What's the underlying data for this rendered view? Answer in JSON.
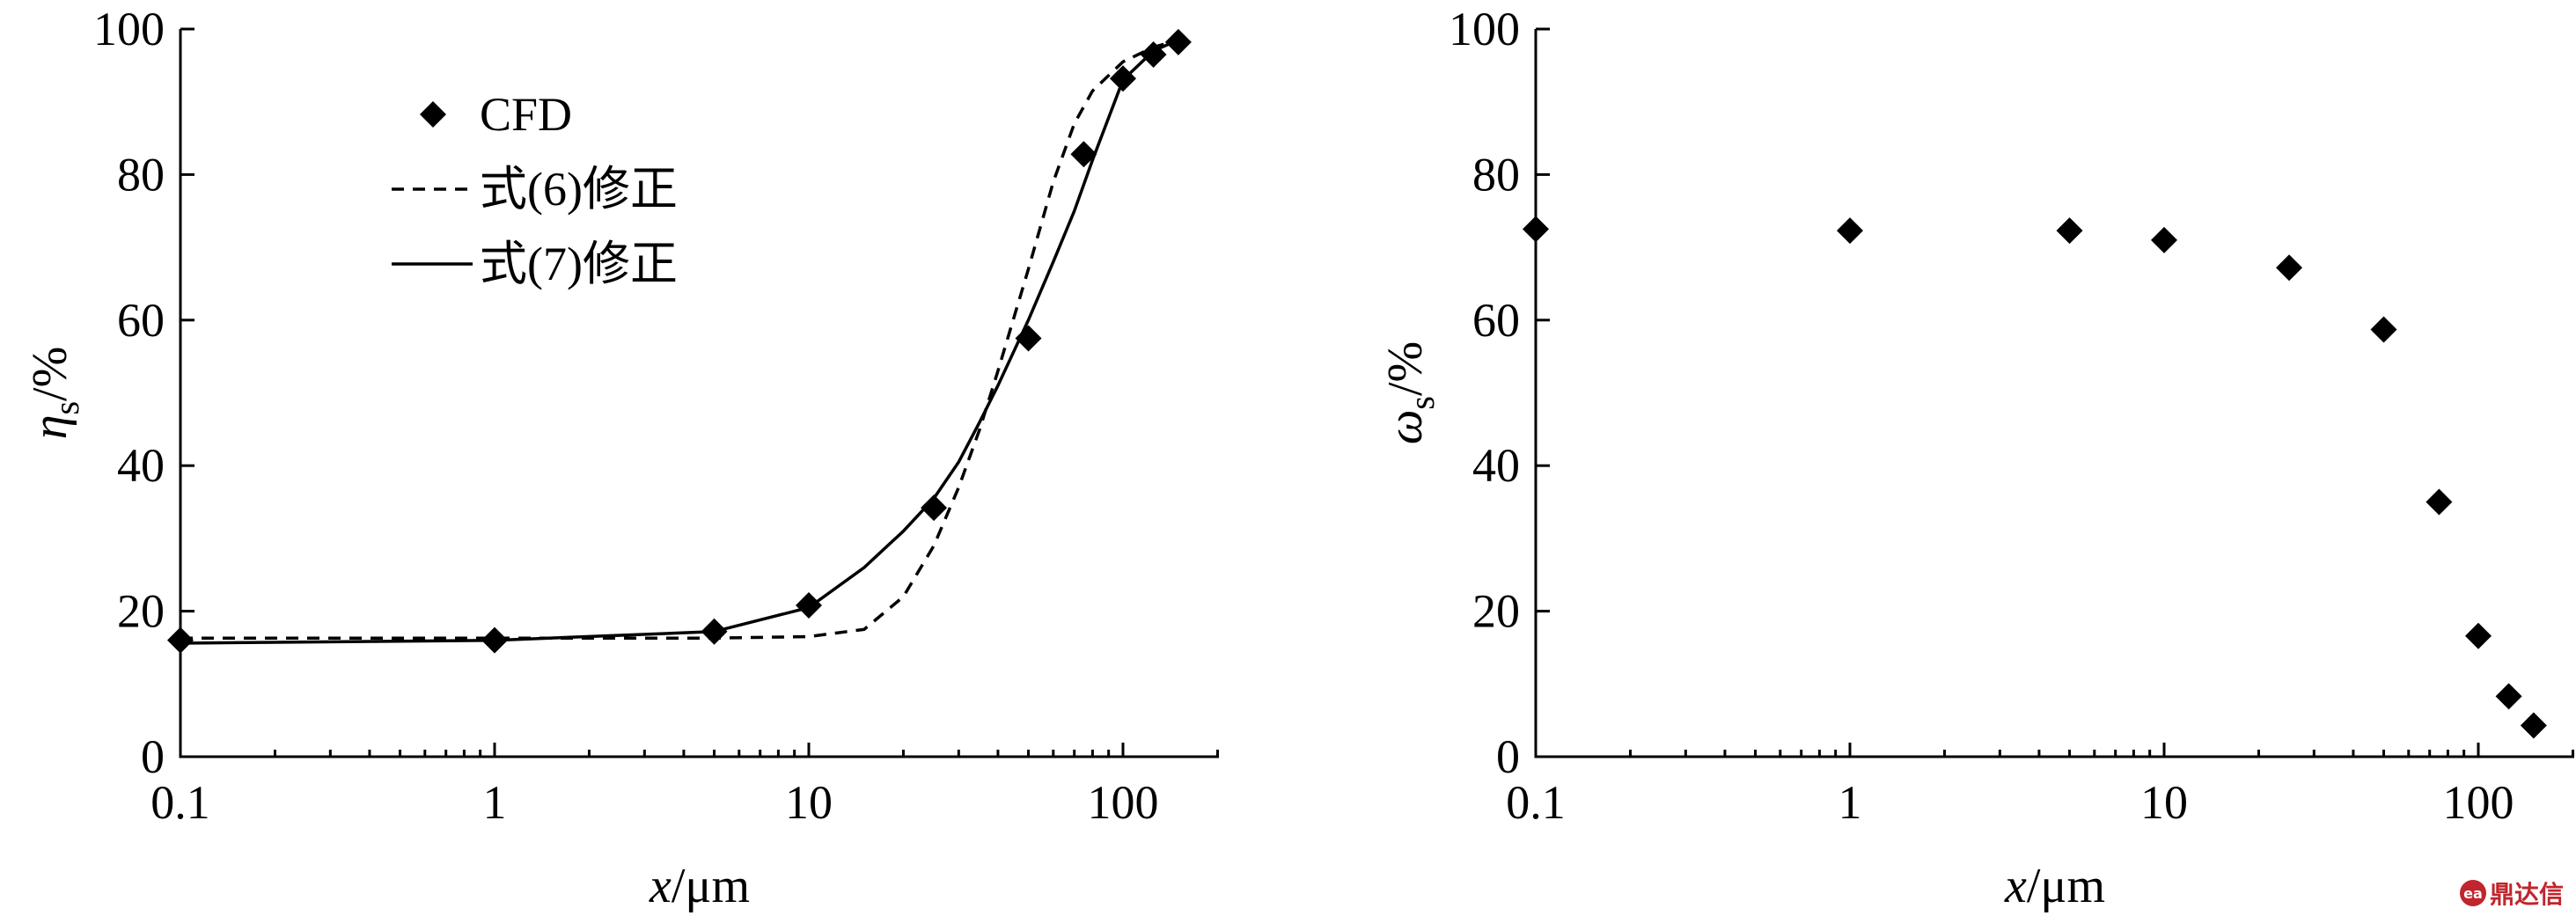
{
  "chart_data": [
    {
      "type": "line",
      "xscale": "log",
      "xlim": [
        0.1,
        200
      ],
      "ylim": [
        0,
        100
      ],
      "xticks": [
        "0.1",
        "1",
        "10",
        "100"
      ],
      "yticks": [
        "0",
        "20",
        "40",
        "60",
        "80",
        "100"
      ],
      "xlabel": {
        "italic": "x",
        "rest": "/μm"
      },
      "ylabel": {
        "symbol": "η",
        "sub": "s",
        "rest": "/%"
      },
      "legend_position": "top-left",
      "series": [
        {
          "name": "CFD",
          "style": "diamond-markers",
          "x": [
            0.1,
            1,
            5,
            10,
            25,
            50,
            75,
            100,
            125,
            150
          ],
          "y": [
            16,
            16,
            17.2,
            20.8,
            34.2,
            57.5,
            82.8,
            93.2,
            96.5,
            98.2
          ]
        },
        {
          "name": "式(6)修正",
          "style": "dashed",
          "x": [
            0.1,
            1,
            5,
            10,
            15,
            20,
            25,
            30,
            35,
            40,
            50,
            60,
            70,
            80,
            100,
            125,
            150
          ],
          "y": [
            16.3,
            16.3,
            16.3,
            16.5,
            17.5,
            22,
            29,
            37,
            45,
            53,
            67,
            79,
            87,
            91.5,
            95.5,
            97.5,
            98.5
          ]
        },
        {
          "name": "式(7)修正",
          "style": "solid",
          "x": [
            0.1,
            1,
            5,
            10,
            15,
            20,
            25,
            30,
            35,
            40,
            50,
            60,
            70,
            80,
            100,
            125,
            150
          ],
          "y": [
            15.6,
            16,
            17.2,
            20.5,
            26,
            31,
            35.5,
            40.5,
            46,
            51,
            60,
            68,
            75,
            82,
            93,
            97,
            98.5
          ]
        }
      ]
    },
    {
      "type": "scatter",
      "xscale": "log",
      "xlim": [
        0.1,
        200
      ],
      "ylim": [
        0,
        100
      ],
      "xticks": [
        "0.1",
        "1",
        "10",
        "100"
      ],
      "yticks": [
        "0",
        "20",
        "40",
        "60",
        "80",
        "100"
      ],
      "xlabel": {
        "italic": "x",
        "rest": "/μm"
      },
      "ylabel": {
        "symbol": "ω",
        "sub": "s",
        "rest": "/%"
      },
      "series": [
        {
          "name": "",
          "style": "diamond-markers",
          "x": [
            0.1,
            1,
            5,
            10,
            25,
            50,
            75,
            100,
            125,
            150
          ],
          "y": [
            72.5,
            72.3,
            72.3,
            71,
            67.2,
            58.7,
            35,
            16.6,
            8.3,
            4.3
          ]
        }
      ]
    }
  ],
  "watermark": {
    "text": "鼎达信",
    "logo": "ea"
  }
}
